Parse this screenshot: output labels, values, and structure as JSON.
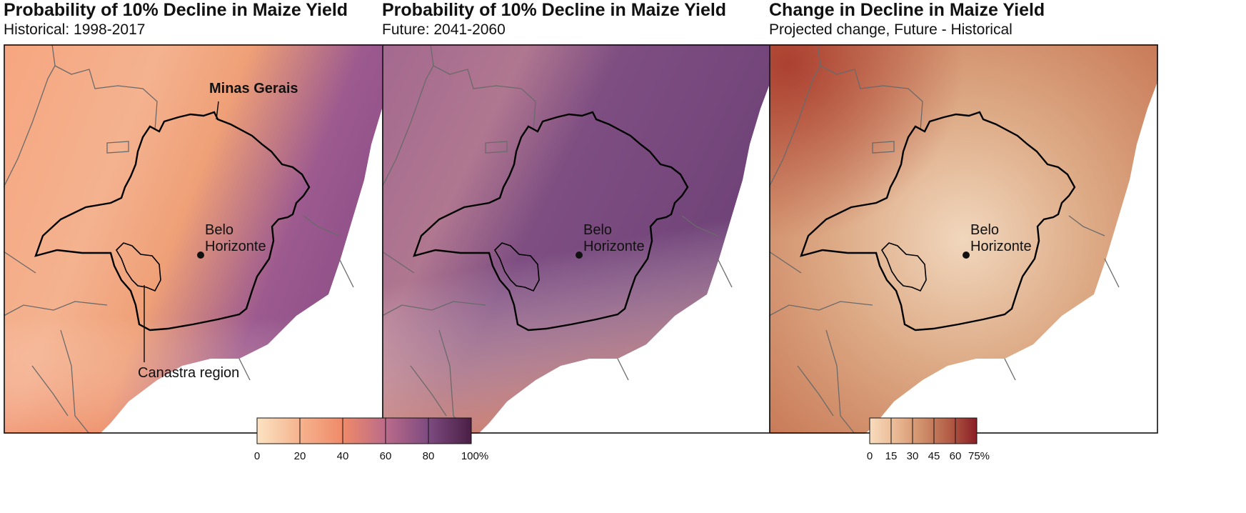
{
  "panels": [
    {
      "title": "Probability of 10% Decline in Maize Yield",
      "subtitle": "Historical: 1998-2017",
      "colors": [
        "#f6a680",
        "#f4b28f",
        "#efa077",
        "#9c5a8f",
        "#8e5088"
      ]
    },
    {
      "title": "Probability of 10% Decline in Maize Yield",
      "subtitle": "Future: 2041-2060",
      "colors": [
        "#a4698f",
        "#b07790",
        "#e69575",
        "#7e4e82",
        "#6d4176"
      ]
    },
    {
      "title": "Change in Decline in Maize Yield",
      "subtitle": "Projected change, Future - Historical",
      "colors": [
        "#c97b58",
        "#deac88",
        "#f1d7bd",
        "#d9a07a",
        "#a83a2c"
      ]
    }
  ],
  "labels": {
    "state": "Minas Gerais",
    "city_line1": "Belo",
    "city_line2": "Horizonte",
    "region": "Canastra region"
  },
  "legend_probability": {
    "ticks": [
      "0",
      "20",
      "40",
      "60",
      "80",
      "100%"
    ],
    "colors": [
      "#fbe3c2",
      "#f6b38e",
      "#ef8a68",
      "#bb6b8a",
      "#7d4b80",
      "#4a1f44"
    ]
  },
  "legend_change": {
    "ticks": [
      "0",
      "15",
      "30",
      "45",
      "60",
      "75%"
    ],
    "colors": [
      "#f8dcbd",
      "#e9b892",
      "#cf8d69",
      "#b25b45",
      "#8a1e26"
    ]
  }
}
